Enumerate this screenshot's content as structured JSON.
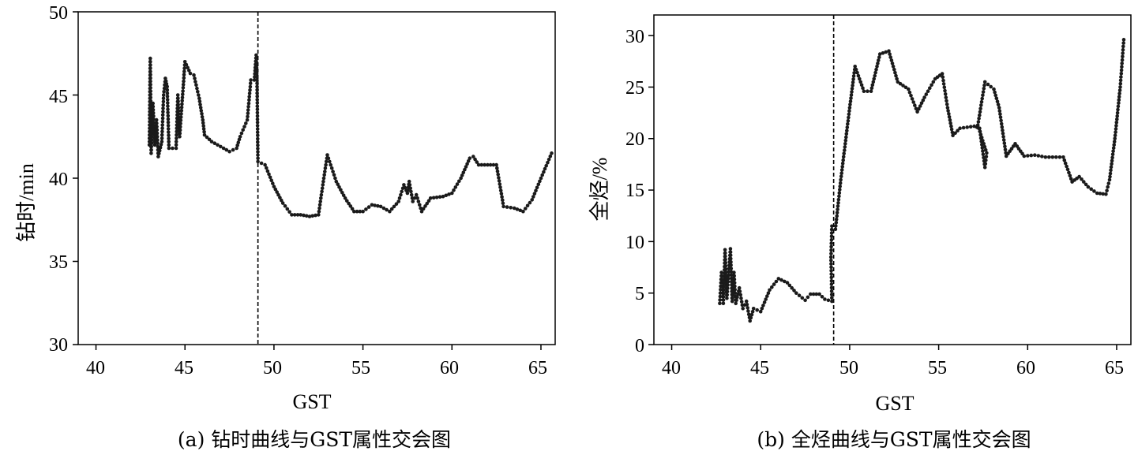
{
  "chart_data": [
    {
      "type": "scatter",
      "caption": "(a) 钻时曲线与GST属性交会图",
      "xlabel": "GST",
      "ylabel": "钻时/min",
      "xlim": [
        39,
        65.8
      ],
      "ylim": [
        30,
        50
      ],
      "xticks": [
        "40",
        "45",
        "50",
        "55",
        "60",
        "65"
      ],
      "yticks": [
        "30",
        "35",
        "40",
        "45",
        "50"
      ],
      "divider_x": 49.1,
      "grid": false,
      "legend": "none",
      "color": "#1a1a1a",
      "anchors": [
        [
          43.0,
          42.0
        ],
        [
          43.05,
          47.2
        ],
        [
          43.1,
          41.5
        ],
        [
          43.2,
          44.5
        ],
        [
          43.3,
          42.0
        ],
        [
          43.4,
          43.5
        ],
        [
          43.5,
          41.3
        ],
        [
          43.7,
          42.2
        ],
        [
          43.8,
          45.0
        ],
        [
          43.9,
          46.0
        ],
        [
          44.0,
          45.5
        ],
        [
          44.1,
          41.8
        ],
        [
          44.5,
          41.8
        ],
        [
          44.6,
          45.0
        ],
        [
          44.7,
          42.5
        ],
        [
          45.0,
          47.0
        ],
        [
          45.3,
          46.3
        ],
        [
          45.5,
          46.2
        ],
        [
          45.8,
          44.8
        ],
        [
          46.0,
          43.5
        ],
        [
          46.1,
          42.6
        ],
        [
          46.5,
          42.2
        ],
        [
          47.0,
          41.9
        ],
        [
          47.5,
          41.6
        ],
        [
          47.9,
          41.8
        ],
        [
          48.1,
          42.5
        ],
        [
          48.5,
          43.5
        ],
        [
          48.7,
          45.9
        ],
        [
          48.9,
          45.9
        ],
        [
          49.0,
          47.4
        ],
        [
          49.05,
          45.7
        ],
        [
          49.1,
          41.0
        ],
        [
          49.5,
          40.8
        ],
        [
          50.0,
          39.5
        ],
        [
          50.5,
          38.5
        ],
        [
          51.0,
          37.8
        ],
        [
          51.5,
          37.8
        ],
        [
          52.0,
          37.7
        ],
        [
          52.5,
          37.8
        ],
        [
          52.8,
          40.0
        ],
        [
          53.0,
          41.4
        ],
        [
          53.5,
          39.8
        ],
        [
          54.0,
          38.8
        ],
        [
          54.5,
          38.0
        ],
        [
          55.0,
          38.0
        ],
        [
          55.5,
          38.4
        ],
        [
          56.0,
          38.3
        ],
        [
          56.5,
          38.0
        ],
        [
          57.0,
          38.6
        ],
        [
          57.3,
          39.6
        ],
        [
          57.5,
          39.1
        ],
        [
          57.6,
          39.8
        ],
        [
          57.8,
          38.6
        ],
        [
          58.0,
          39.0
        ],
        [
          58.3,
          38.0
        ],
        [
          58.8,
          38.8
        ],
        [
          59.5,
          38.9
        ],
        [
          60.0,
          39.1
        ],
        [
          60.5,
          40.0
        ],
        [
          61.0,
          41.2
        ],
        [
          61.2,
          41.3
        ],
        [
          61.5,
          40.8
        ],
        [
          62.0,
          40.8
        ],
        [
          62.5,
          40.8
        ],
        [
          62.9,
          38.3
        ],
        [
          63.5,
          38.2
        ],
        [
          64.0,
          38.0
        ],
        [
          64.5,
          38.7
        ],
        [
          65.0,
          40.0
        ],
        [
          65.6,
          41.5
        ]
      ]
    },
    {
      "type": "scatter",
      "caption": "(b) 全烃曲线与GST属性交会图",
      "xlabel": "GST",
      "ylabel": "全烃/%",
      "xlim": [
        39,
        65.8
      ],
      "ylim": [
        0,
        32
      ],
      "xticks": [
        "40",
        "45",
        "50",
        "55",
        "60",
        "65"
      ],
      "yticks": [
        "0",
        "5",
        "10",
        "15",
        "20",
        "25",
        "30"
      ],
      "divider_x": 49.1,
      "grid": false,
      "legend": "none",
      "color": "#1a1a1a",
      "anchors": [
        [
          42.7,
          4.0
        ],
        [
          42.8,
          7.0
        ],
        [
          42.9,
          4.0
        ],
        [
          43.0,
          9.2
        ],
        [
          43.1,
          4.5
        ],
        [
          43.3,
          9.3
        ],
        [
          43.4,
          4.2
        ],
        [
          43.5,
          7.0
        ],
        [
          43.6,
          4.0
        ],
        [
          43.8,
          5.5
        ],
        [
          44.0,
          3.5
        ],
        [
          44.2,
          4.2
        ],
        [
          44.4,
          2.3
        ],
        [
          44.6,
          3.5
        ],
        [
          45.0,
          3.2
        ],
        [
          45.5,
          5.3
        ],
        [
          46.0,
          6.4
        ],
        [
          46.5,
          6.0
        ],
        [
          47.0,
          5.0
        ],
        [
          47.5,
          4.3
        ],
        [
          47.8,
          4.9
        ],
        [
          48.3,
          4.9
        ],
        [
          48.6,
          4.4
        ],
        [
          49.0,
          4.2
        ],
        [
          48.95,
          8.5
        ],
        [
          49.0,
          11.5
        ],
        [
          49.2,
          11.2
        ],
        [
          49.5,
          16.0
        ],
        [
          50.0,
          23.0
        ],
        [
          50.3,
          27.0
        ],
        [
          50.8,
          24.6
        ],
        [
          51.2,
          24.6
        ],
        [
          51.7,
          28.2
        ],
        [
          52.2,
          28.5
        ],
        [
          52.7,
          25.5
        ],
        [
          53.3,
          24.8
        ],
        [
          53.8,
          22.6
        ],
        [
          54.2,
          24.0
        ],
        [
          54.8,
          25.8
        ],
        [
          55.2,
          26.3
        ],
        [
          55.5,
          23.0
        ],
        [
          55.8,
          20.3
        ],
        [
          56.2,
          21.0
        ],
        [
          57.0,
          21.2
        ],
        [
          57.3,
          21.0
        ],
        [
          57.6,
          17.2
        ],
        [
          57.7,
          18.6
        ],
        [
          57.2,
          21.3
        ],
        [
          57.6,
          25.5
        ],
        [
          58.1,
          24.8
        ],
        [
          58.4,
          23.0
        ],
        [
          58.8,
          18.3
        ],
        [
          59.3,
          19.5
        ],
        [
          59.8,
          18.3
        ],
        [
          60.4,
          18.4
        ],
        [
          61.0,
          18.2
        ],
        [
          61.6,
          18.2
        ],
        [
          62.0,
          18.2
        ],
        [
          62.5,
          15.8
        ],
        [
          62.9,
          16.3
        ],
        [
          63.4,
          15.3
        ],
        [
          63.9,
          14.7
        ],
        [
          64.4,
          14.6
        ],
        [
          64.6,
          16.0
        ],
        [
          64.9,
          20.0
        ],
        [
          65.2,
          25.0
        ],
        [
          65.4,
          29.6
        ]
      ]
    }
  ]
}
